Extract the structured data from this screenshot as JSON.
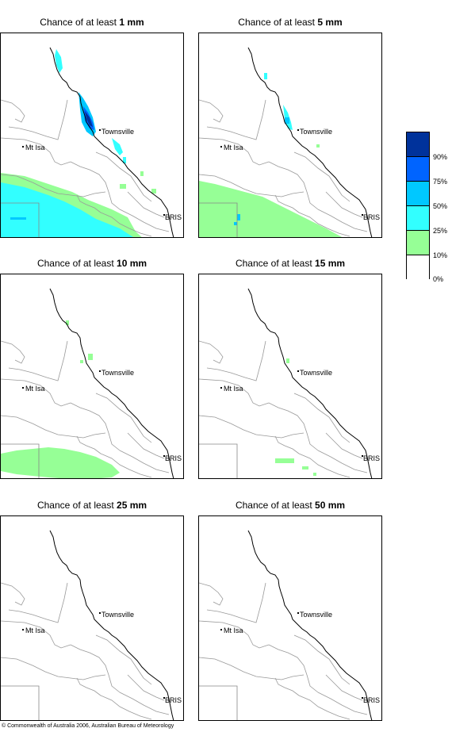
{
  "panels": [
    {
      "title_prefix": "Chance of at least ",
      "amount": "1 mm"
    },
    {
      "title_prefix": "Chance of at least ",
      "amount": "5 mm"
    },
    {
      "title_prefix": "Chance of at least ",
      "amount": "10 mm"
    },
    {
      "title_prefix": "Chance of at least ",
      "amount": "15 mm"
    },
    {
      "title_prefix": "Chance of at least ",
      "amount": "25 mm"
    },
    {
      "title_prefix": "Chance of at least ",
      "amount": "50 mm"
    }
  ],
  "places": {
    "townsville": "Townsville",
    "mt_isa": "Mt Isa",
    "bris": "BRIS"
  },
  "legend": {
    "labels": [
      "90%",
      "75%",
      "50%",
      "25%",
      "10%",
      "0%"
    ],
    "colors": [
      "#00329b",
      "#0064ff",
      "#00c8ff",
      "#32ffff",
      "#96ff96",
      "#ffffff"
    ]
  },
  "copyright": "© Commonwealth of Australia 2006, Australian Bureau of Meteorology"
}
